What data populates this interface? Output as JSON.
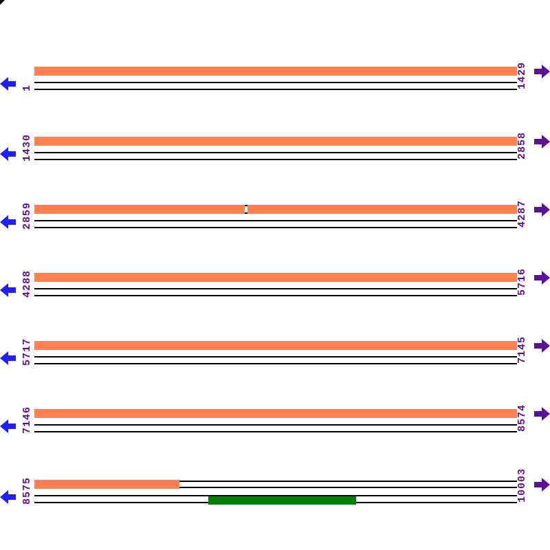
{
  "figure": {
    "type": "linear-sequence-map",
    "colors": {
      "forward_feature": "#ff8050",
      "reverse_feature": "#008000",
      "coordinate_text": "#5b1096",
      "left_arrow": "#1f1fff",
      "right_arrow": "#5b1096",
      "line": "#000000",
      "background": "#ffffff"
    },
    "rows": [
      {
        "start_label": "1",
        "end_label": "1429",
        "forward": {
          "from": 0,
          "to": 1
        }
      },
      {
        "start_label": "1430",
        "end_label": "2858",
        "forward": {
          "from": 0,
          "to": 1
        }
      },
      {
        "start_label": "2859",
        "end_label": "4287",
        "forward": {
          "from": 0,
          "to": 1
        },
        "gap": {
          "from": 0.4357,
          "to": 0.4414
        }
      },
      {
        "start_label": "4288",
        "end_label": "5716",
        "forward": {
          "from": 0,
          "to": 1
        }
      },
      {
        "start_label": "5717",
        "end_label": "7145",
        "forward": {
          "from": 0,
          "to": 1
        }
      },
      {
        "start_label": "7146",
        "end_label": "8574",
        "forward": {
          "from": 0,
          "to": 1
        }
      },
      {
        "start_label": "8575",
        "end_label": "10003",
        "forward": {
          "from": 0,
          "to": 0.3
        },
        "reverse": {
          "from": 0.36,
          "to": 0.667
        }
      }
    ],
    "icons": {
      "left_arrow": "left-continuation-arrow",
      "right_arrow": "right-continuation-arrow"
    }
  }
}
